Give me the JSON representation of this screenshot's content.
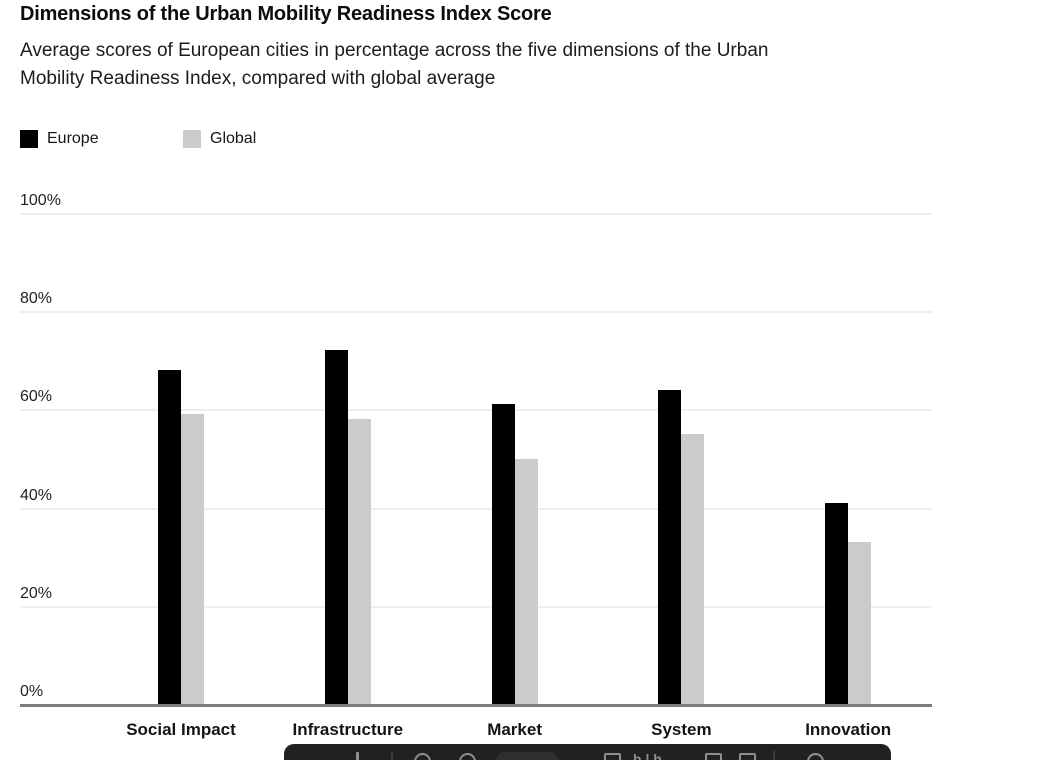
{
  "header": {
    "title": "Dimensions of the Urban Mobility Readiness Index Score",
    "subtitle": "Average scores of European cities in percentage across the five dimensions of the Urban Mobility Readiness Index, compared with global average",
    "subtitle_line1": "Average scores of European cities in percentage across the five dimensions of the Urban",
    "subtitle_line2": "Mobility Readiness Index, compared with global average"
  },
  "legend": [
    {
      "label": "Europe",
      "color": "#000000"
    },
    {
      "label": "Global",
      "color": "#cbcbcb"
    }
  ],
  "chart_data": {
    "type": "bar",
    "title": "Dimensions of the Urban Mobility Readiness Index Score",
    "categories": [
      "Social Impact",
      "Infrastructure",
      "Market",
      "System",
      "Innovation"
    ],
    "series": [
      {
        "name": "Europe",
        "color": "#000000",
        "values": [
          68,
          72,
          61,
          64,
          41
        ]
      },
      {
        "name": "Global",
        "color": "#cbcbcb",
        "values": [
          59,
          58,
          50,
          55,
          33
        ]
      }
    ],
    "xlabel": "",
    "ylabel": "",
    "ylim": [
      0,
      100
    ],
    "yticks": [
      {
        "value": 0,
        "label": "0%"
      },
      {
        "value": 20,
        "label": "20%"
      },
      {
        "value": 40,
        "label": "40%"
      },
      {
        "value": 60,
        "label": "60%"
      },
      {
        "value": 80,
        "label": "80%"
      },
      {
        "value": 100,
        "label": "100%"
      }
    ],
    "grid": true,
    "legend_position": "top-left"
  },
  "colors": {
    "background": "#ffffff",
    "gridline": "#efefef",
    "axis_line": "#7d7d7d",
    "title_text": "#0d0d0d",
    "body_text": "#1c1c1c",
    "toolbar_background": "#212121",
    "toolbar_icon": "#8f8f8f"
  },
  "toolbar": {
    "icons": [
      {
        "name": "pointer-icon",
        "type": "stroke",
        "x": 72
      },
      {
        "name": "separator",
        "type": "sep",
        "x": 107
      },
      {
        "name": "zoom-out-icon",
        "type": "circle",
        "x": 130
      },
      {
        "name": "zoom-in-icon",
        "type": "circle",
        "x": 175
      },
      {
        "name": "page-pill",
        "type": "pill",
        "x": 212
      },
      {
        "name": "frame-icon",
        "type": "square",
        "x": 320
      },
      {
        "name": "text-tool-icon",
        "type": "text",
        "x": 349,
        "glyph": "h | h"
      },
      {
        "name": "grid-view-icon",
        "type": "square",
        "x": 421
      },
      {
        "name": "layout-icon",
        "type": "square",
        "x": 455
      },
      {
        "name": "separator",
        "type": "sep",
        "x": 489
      },
      {
        "name": "connector-icon",
        "type": "circle",
        "x": 523
      }
    ]
  }
}
